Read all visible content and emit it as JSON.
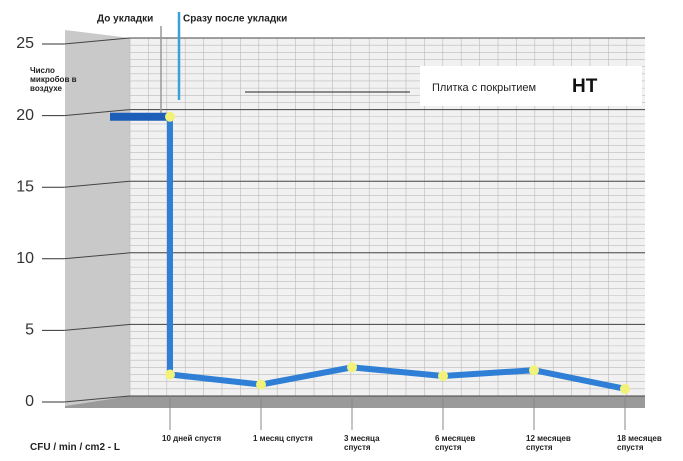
{
  "chart_data": {
    "type": "line",
    "y_axis_label": "Число микробов в воздухе",
    "x_axis_label": "CFU / min / cm2 - L",
    "before_label": "До укладки",
    "after_label": "Сразу после укладки",
    "before_value": 19.5,
    "legend_text": "Плитка с покрытием",
    "legend_highlight": "HT",
    "categories": [
      "10 дней спустя",
      "1 месяц спустя",
      "3 месяца спустя",
      "6 месяцев спустя",
      "12 месяцев спустя",
      "18 месяцев спустя"
    ],
    "values": [
      1.5,
      0.8,
      2.0,
      1.4,
      1.8,
      0.5
    ],
    "color": "#2f7fd6",
    "point_color": "#f2f27a",
    "ylim": [
      0,
      25
    ],
    "yticks": [
      0,
      5,
      10,
      15,
      20,
      25
    ],
    "grid": true
  }
}
